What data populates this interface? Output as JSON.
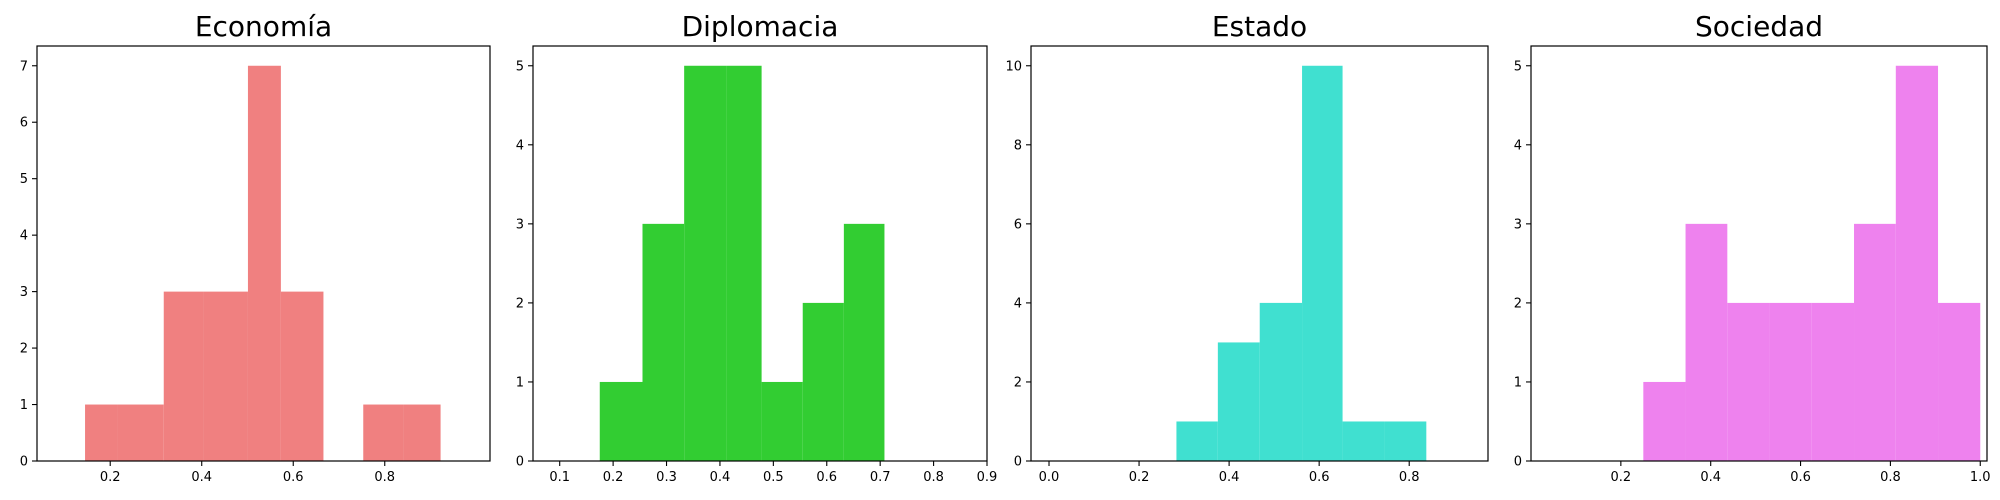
{
  "chart_data": [
    {
      "type": "bar",
      "title": "Economía",
      "color": "#F08080",
      "bins": [
        0.15,
        0.2429,
        0.3357,
        0.4286,
        0.5214,
        0.6143,
        0.7071,
        0.8,
        0.8929
      ],
      "bin_width": 0.0714,
      "bin_starts": [
        0.15,
        0.2214,
        0.3143,
        0.4071,
        0.5,
        0.5714,
        0.7071,
        0.7643,
        0.8571
      ],
      "bars": [
        {
          "x0": 0.145,
          "x1": 0.216,
          "count": 1
        },
        {
          "x0": 0.216,
          "x1": 0.317,
          "count": 1
        },
        {
          "x0": 0.317,
          "x1": 0.404,
          "count": 3
        },
        {
          "x0": 0.404,
          "x1": 0.501,
          "count": 3
        },
        {
          "x0": 0.501,
          "x1": 0.573,
          "count": 7
        },
        {
          "x0": 0.573,
          "x1": 0.666,
          "count": 3
        },
        {
          "x0": 0.666,
          "x1": 0.753,
          "count": 0
        },
        {
          "x0": 0.753,
          "x1": 0.84,
          "count": 1
        },
        {
          "x0": 0.84,
          "x1": 0.922,
          "count": 1
        }
      ],
      "xlim": [
        0.04,
        1.03
      ],
      "ylim": [
        0,
        7.35
      ],
      "xticks": [
        0.2,
        0.4,
        0.6,
        0.8
      ],
      "yticks": [
        0,
        1,
        2,
        3,
        4,
        5,
        6,
        7
      ]
    },
    {
      "type": "bar",
      "title": "Diplomacia",
      "color": "#32CD32",
      "bars": [
        {
          "x0": 0.175,
          "x1": 0.255,
          "count": 1
        },
        {
          "x0": 0.255,
          "x1": 0.333,
          "count": 3
        },
        {
          "x0": 0.333,
          "x1": 0.413,
          "count": 5
        },
        {
          "x0": 0.413,
          "x1": 0.478,
          "count": 5
        },
        {
          "x0": 0.478,
          "x1": 0.555,
          "count": 1
        },
        {
          "x0": 0.555,
          "x1": 0.632,
          "count": 2
        },
        {
          "x0": 0.632,
          "x1": 0.708,
          "count": 3
        }
      ],
      "xlim": [
        0.05,
        0.9
      ],
      "ylim": [
        0,
        5.25
      ],
      "xticks": [
        0.1,
        0.2,
        0.3,
        0.4,
        0.5,
        0.6,
        0.7,
        0.8,
        0.9
      ],
      "yticks": [
        0,
        1,
        2,
        3,
        4,
        5
      ]
    },
    {
      "type": "bar",
      "title": "Estado",
      "color": "#40E0D0",
      "bars": [
        {
          "x0": 0.283,
          "x1": 0.375,
          "count": 1
        },
        {
          "x0": 0.375,
          "x1": 0.468,
          "count": 3
        },
        {
          "x0": 0.468,
          "x1": 0.562,
          "count": 4
        },
        {
          "x0": 0.562,
          "x1": 0.652,
          "count": 10
        },
        {
          "x0": 0.652,
          "x1": 0.745,
          "count": 1
        },
        {
          "x0": 0.745,
          "x1": 0.838,
          "count": 1
        }
      ],
      "xlim": [
        -0.04,
        0.975
      ],
      "ylim": [
        0,
        10.5
      ],
      "xticks": [
        0.0,
        0.2,
        0.4,
        0.6,
        0.8
      ],
      "yticks": [
        0,
        2,
        4,
        6,
        8,
        10
      ]
    },
    {
      "type": "bar",
      "title": "Sociedad",
      "color": "#EE82EE",
      "bars": [
        {
          "x0": 0.25,
          "x1": 0.344,
          "count": 1
        },
        {
          "x0": 0.344,
          "x1": 0.437,
          "count": 3
        },
        {
          "x0": 0.437,
          "x1": 0.531,
          "count": 2
        },
        {
          "x0": 0.531,
          "x1": 0.625,
          "count": 2
        },
        {
          "x0": 0.625,
          "x1": 0.719,
          "count": 2
        },
        {
          "x0": 0.719,
          "x1": 0.812,
          "count": 3
        },
        {
          "x0": 0.812,
          "x1": 0.906,
          "count": 5
        },
        {
          "x0": 0.906,
          "x1": 1.0,
          "count": 2
        }
      ],
      "xlim": [
        0.0,
        1.015
      ],
      "ylim": [
        0,
        5.25
      ],
      "xticks": [
        0.2,
        0.4,
        0.6,
        0.8,
        1.0
      ],
      "yticks": [
        0,
        1,
        2,
        3,
        4,
        5
      ]
    }
  ]
}
